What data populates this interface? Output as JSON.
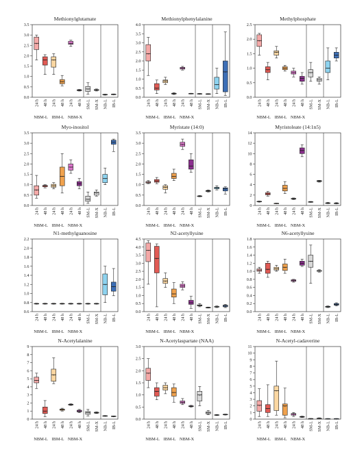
{
  "figure": {
    "time_labels": [
      "24 h",
      "48 h",
      "24 h",
      "48 h",
      "24 h",
      "48 h",
      "SM-L",
      "SM-X",
      "NB-L",
      "IB-L"
    ],
    "group_labels": [
      "NBM-L",
      "IBM-L",
      "NBM-X"
    ],
    "colors": [
      "#f4a9a8",
      "#e25b55",
      "#fbd7a2",
      "#f0a24e",
      "#dd77cc",
      "#8b2f8e",
      "#d8d8d8",
      "#ececec",
      "#8ed3ef",
      "#3d6fb6"
    ]
  },
  "chart_data": [
    {
      "type": "box",
      "title": "Methionylglutamate",
      "ylim": [
        0,
        3.5
      ],
      "yticks": [
        0,
        0.5,
        1.0,
        1.5,
        2.0,
        2.5,
        3.0,
        3.5
      ],
      "boxes": [
        [
          1.8,
          2.3,
          2.6,
          2.9,
          3.0
        ],
        [
          1.1,
          1.55,
          1.8,
          1.95,
          2.05
        ],
        [
          1.1,
          1.45,
          1.8,
          1.95,
          2.1
        ],
        [
          0.55,
          0.65,
          0.75,
          0.85,
          1.05
        ],
        [
          2.45,
          2.55,
          2.6,
          2.7,
          2.75
        ],
        [
          0.3,
          0.32,
          0.34,
          0.36,
          0.38
        ],
        [
          0.15,
          0.28,
          0.4,
          0.52,
          0.7
        ],
        [
          0.3,
          0.33,
          0.35,
          0.37,
          0.4
        ],
        [
          0.1,
          0.12,
          0.13,
          0.14,
          0.15
        ],
        [
          0.12,
          0.13,
          0.14,
          0.15,
          0.16
        ]
      ]
    },
    {
      "type": "box",
      "title": "Methionylphenylalanine",
      "ylim": [
        0,
        4.0
      ],
      "yticks": [
        0,
        0.5,
        1.0,
        1.5,
        2.0,
        2.5,
        3.0,
        3.5,
        4.0
      ],
      "boxes": [
        [
          1.2,
          2.0,
          2.4,
          2.9,
          3.3
        ],
        [
          0.2,
          0.4,
          0.5,
          0.75,
          0.95
        ],
        [
          0.7,
          0.8,
          0.9,
          0.95,
          1.1
        ],
        [
          0.15,
          0.18,
          0.2,
          0.22,
          0.25
        ],
        [
          1.5,
          1.55,
          1.6,
          1.65,
          1.7
        ],
        [
          0.18,
          0.19,
          0.2,
          0.21,
          0.22
        ],
        [
          0.17,
          0.18,
          0.19,
          0.2,
          0.21
        ],
        [
          0.16,
          0.17,
          0.18,
          0.19,
          0.2
        ],
        [
          0.2,
          0.45,
          0.7,
          1.1,
          1.6
        ],
        [
          0.1,
          0.3,
          1.4,
          2.0,
          3.6
        ]
      ]
    },
    {
      "type": "box",
      "title": "Methylphosphate",
      "ylim": [
        0,
        2.5
      ],
      "yticks": [
        0,
        0.5,
        1.0,
        1.5,
        2.0,
        2.5
      ],
      "boxes": [
        [
          1.45,
          1.75,
          1.95,
          2.15,
          2.2
        ],
        [
          0.6,
          0.85,
          0.95,
          1.05,
          1.2
        ],
        [
          1.35,
          1.45,
          1.55,
          1.6,
          1.75
        ],
        [
          0.9,
          0.95,
          1.0,
          1.05,
          1.1
        ],
        [
          0.7,
          0.8,
          0.85,
          0.9,
          1.0
        ],
        [
          0.45,
          0.55,
          0.65,
          0.72,
          0.85
        ],
        [
          0.55,
          0.7,
          0.85,
          0.95,
          1.2
        ],
        [
          0.45,
          0.55,
          0.6,
          0.65,
          0.7
        ],
        [
          0.6,
          0.85,
          1.0,
          1.25,
          1.7
        ],
        [
          1.25,
          1.35,
          1.45,
          1.55,
          1.7
        ]
      ]
    },
    {
      "type": "box",
      "title": "Myo-inositol",
      "ylim": [
        0,
        3.5
      ],
      "yticks": [
        0,
        0.5,
        1.0,
        1.5,
        2.0,
        2.5,
        3.0,
        3.5
      ],
      "boxes": [
        [
          0.35,
          0.5,
          0.75,
          0.95,
          1.45
        ],
        [
          0.85,
          0.9,
          0.95,
          0.97,
          1.0
        ],
        [
          0.8,
          0.88,
          0.95,
          1.02,
          1.1
        ],
        [
          0.6,
          0.95,
          1.4,
          1.85,
          2.5
        ],
        [
          1.55,
          1.7,
          1.85,
          2.0,
          2.2
        ],
        [
          0.8,
          0.95,
          1.05,
          1.15,
          1.3
        ],
        [
          0.1,
          0.2,
          0.3,
          0.45,
          0.65
        ],
        [
          0.45,
          0.5,
          0.6,
          0.65,
          0.75
        ],
        [
          1.0,
          1.1,
          1.3,
          1.5,
          1.8
        ],
        [
          2.6,
          2.95,
          3.05,
          3.15,
          3.2
        ]
      ]
    },
    {
      "type": "box",
      "title": "Myristate (14:0)",
      "ylim": [
        0,
        3.5
      ],
      "yticks": [
        0,
        0.5,
        1.0,
        1.5,
        2.0,
        2.5,
        3.0,
        3.5
      ],
      "boxes": [
        [
          1.05,
          1.08,
          1.12,
          1.15,
          1.2
        ],
        [
          1.05,
          1.12,
          1.18,
          1.25,
          1.35
        ],
        [
          0.6,
          0.78,
          0.88,
          0.95,
          1.0
        ],
        [
          1.2,
          1.3,
          1.4,
          1.55,
          1.75
        ],
        [
          2.7,
          2.85,
          2.95,
          3.05,
          3.2
        ],
        [
          1.6,
          1.75,
          1.9,
          2.2,
          2.5
        ],
        [
          0.42,
          0.43,
          0.45,
          0.46,
          0.48
        ],
        [
          0.65,
          0.67,
          0.7,
          0.72,
          0.75
        ],
        [
          0.75,
          0.8,
          0.85,
          0.88,
          0.95
        ],
        [
          0.55,
          0.7,
          0.8,
          0.85,
          0.9
        ]
      ]
    },
    {
      "type": "box",
      "title": "Myristoleate (14:1n5)",
      "ylim": [
        0,
        14
      ],
      "yticks": [
        0,
        2,
        4,
        6,
        8,
        10,
        12,
        14
      ],
      "boxes": [
        [
          0.65,
          0.7,
          0.75,
          0.8,
          0.85
        ],
        [
          1.8,
          2.05,
          2.25,
          2.45,
          2.7
        ],
        [
          0.35,
          0.38,
          0.4,
          0.42,
          0.45
        ],
        [
          2.3,
          2.8,
          3.3,
          3.9,
          4.6
        ],
        [
          1.15,
          1.22,
          1.3,
          1.36,
          1.45
        ],
        [
          9.4,
          10.0,
          10.6,
          11.1,
          11.7
        ],
        [
          0.6,
          0.65,
          0.7,
          0.72,
          0.78
        ],
        [
          4.5,
          4.6,
          4.7,
          4.8,
          4.85
        ],
        [
          0.35,
          0.4,
          0.45,
          0.5,
          0.6
        ],
        [
          0.3,
          0.35,
          0.4,
          0.45,
          0.55
        ]
      ]
    },
    {
      "type": "box",
      "title": "N1-methylguanosine",
      "ylim": [
        0.6,
        2.2
      ],
      "yticks": [
        0.6,
        0.8,
        1.0,
        1.2,
        1.4,
        1.6,
        1.8,
        2.0,
        2.2
      ],
      "boxes": [
        [
          0.765,
          0.77,
          0.775,
          0.78,
          0.785
        ],
        [
          0.765,
          0.77,
          0.775,
          0.78,
          0.785
        ],
        [
          0.765,
          0.77,
          0.775,
          0.78,
          0.785
        ],
        [
          0.765,
          0.77,
          0.775,
          0.78,
          0.785
        ],
        [
          0.765,
          0.77,
          0.775,
          0.78,
          0.785
        ],
        [
          0.765,
          0.77,
          0.775,
          0.78,
          0.785
        ],
        [
          0.765,
          0.77,
          0.775,
          0.78,
          0.785
        ],
        [
          0.765,
          0.77,
          0.775,
          0.78,
          0.785
        ],
        [
          0.8,
          0.97,
          1.2,
          1.43,
          1.6
        ],
        [
          0.95,
          1.05,
          1.15,
          1.25,
          1.55
        ]
      ]
    },
    {
      "type": "box",
      "title": "N2-acetyllysine",
      "ylim": [
        0,
        4.5
      ],
      "yticks": [
        0,
        0.5,
        1.0,
        1.5,
        2.0,
        2.5,
        3.0,
        3.5,
        4.0,
        4.5
      ],
      "boxes": [
        [
          1.7,
          3.1,
          3.8,
          4.25,
          4.4
        ],
        [
          0.3,
          2.4,
          3.3,
          4.05,
          4.2
        ],
        [
          1.5,
          1.75,
          1.9,
          2.05,
          2.4
        ],
        [
          0.5,
          0.9,
          1.1,
          1.4,
          1.8
        ],
        [
          1.35,
          1.5,
          1.6,
          1.7,
          1.85
        ],
        [
          0.2,
          0.45,
          0.55,
          0.7,
          0.95
        ],
        [
          0.3,
          0.35,
          0.38,
          0.42,
          0.5
        ],
        [
          0.22,
          0.24,
          0.25,
          0.26,
          0.28
        ],
        [
          0.25,
          0.28,
          0.3,
          0.32,
          0.35
        ],
        [
          0.25,
          0.3,
          0.35,
          0.4,
          0.45
        ]
      ]
    },
    {
      "type": "box",
      "title": "N6-acetyllysine",
      "ylim": [
        0,
        1.8
      ],
      "yticks": [
        0,
        0.2,
        0.4,
        0.6,
        0.8,
        1.0,
        1.2,
        1.4,
        1.6,
        1.8
      ],
      "boxes": [
        [
          0.95,
          1.0,
          1.03,
          1.06,
          1.1
        ],
        [
          0.85,
          0.95,
          1.05,
          1.2,
          1.25
        ],
        [
          1.0,
          1.03,
          1.06,
          1.1,
          1.15
        ],
        [
          0.95,
          1.02,
          1.1,
          1.18,
          1.3
        ],
        [
          0.73,
          0.75,
          0.77,
          0.79,
          0.8
        ],
        [
          1.12,
          1.15,
          1.2,
          1.25,
          1.3
        ],
        [
          0.7,
          1.1,
          1.25,
          1.4,
          1.65
        ],
        [
          0.98,
          1.0,
          1.01,
          1.02,
          1.04
        ],
        [
          0.1,
          0.11,
          0.12,
          0.13,
          0.14
        ],
        [
          0.14,
          0.16,
          0.18,
          0.2,
          0.22
        ]
      ]
    },
    {
      "type": "box",
      "title": "N-Acetylalanine",
      "ylim": [
        0,
        9
      ],
      "yticks": [
        0,
        1,
        2,
        3,
        4,
        5,
        6,
        7,
        8,
        9
      ],
      "boxes": [
        [
          3.8,
          4.5,
          4.8,
          5.2,
          5.7
        ],
        [
          0.3,
          0.7,
          1.0,
          1.5,
          2.3
        ],
        [
          4.4,
          4.7,
          5.5,
          6.2,
          7.6
        ],
        [
          1.0,
          1.1,
          1.2,
          1.25,
          1.35
        ],
        [
          1.7,
          1.75,
          1.8,
          1.85,
          1.9
        ],
        [
          0.8,
          0.9,
          1.0,
          1.1,
          1.2
        ],
        [
          0.4,
          0.6,
          0.8,
          0.95,
          1.2
        ],
        [
          0.7,
          0.75,
          0.8,
          0.85,
          0.9
        ],
        [
          0.35,
          0.37,
          0.4,
          0.42,
          0.45
        ],
        [
          0.3,
          0.33,
          0.35,
          0.38,
          0.4
        ]
      ]
    },
    {
      "type": "box",
      "title": "N-Acetylaspartate (NAA)",
      "ylim": [
        0,
        3.0
      ],
      "yticks": [
        0,
        0.5,
        1.0,
        1.5,
        2.0,
        2.5,
        3.0
      ],
      "boxes": [
        [
          1.3,
          1.6,
          1.9,
          2.1,
          2.5
        ],
        [
          0.8,
          0.95,
          1.15,
          1.3,
          1.5
        ],
        [
          1.05,
          1.2,
          1.3,
          1.4,
          1.5
        ],
        [
          0.7,
          0.95,
          1.1,
          1.3,
          1.45
        ],
        [
          0.6,
          0.65,
          0.7,
          0.75,
          0.85
        ],
        [
          0.5,
          0.52,
          0.53,
          0.55,
          0.57
        ],
        [
          0.55,
          0.75,
          1.0,
          1.15,
          1.35
        ],
        [
          0.18,
          0.22,
          0.26,
          0.3,
          0.36
        ],
        [
          0.15,
          0.16,
          0.17,
          0.18,
          0.19
        ],
        [
          0.17,
          0.18,
          0.19,
          0.2,
          0.21
        ]
      ]
    },
    {
      "type": "box",
      "title": "N-Acetyl-cadaverine",
      "ylim": [
        0,
        11
      ],
      "yticks": [
        0,
        1,
        2,
        3,
        4,
        5,
        6,
        7,
        8,
        9,
        10,
        11
      ],
      "boxes": [
        [
          0.4,
          1.2,
          2.1,
          2.8,
          4.6
        ],
        [
          0.4,
          1.0,
          1.6,
          2.2,
          5.2
        ],
        [
          0.6,
          1.3,
          4.3,
          5.0,
          8.8
        ],
        [
          0.2,
          0.6,
          2.0,
          2.3,
          4.7
        ],
        [
          0.4,
          0.6,
          0.75,
          0.85,
          1.0
        ],
        [
          0.25,
          0.3,
          0.35,
          0.4,
          0.45
        ],
        [
          0.05,
          0.07,
          0.08,
          0.09,
          0.1
        ],
        [
          0.08,
          0.1,
          0.12,
          0.14,
          0.2
        ],
        [
          0.05,
          0.06,
          0.07,
          0.08,
          0.09
        ],
        [
          0.05,
          0.06,
          0.07,
          0.08,
          0.09
        ]
      ]
    }
  ]
}
